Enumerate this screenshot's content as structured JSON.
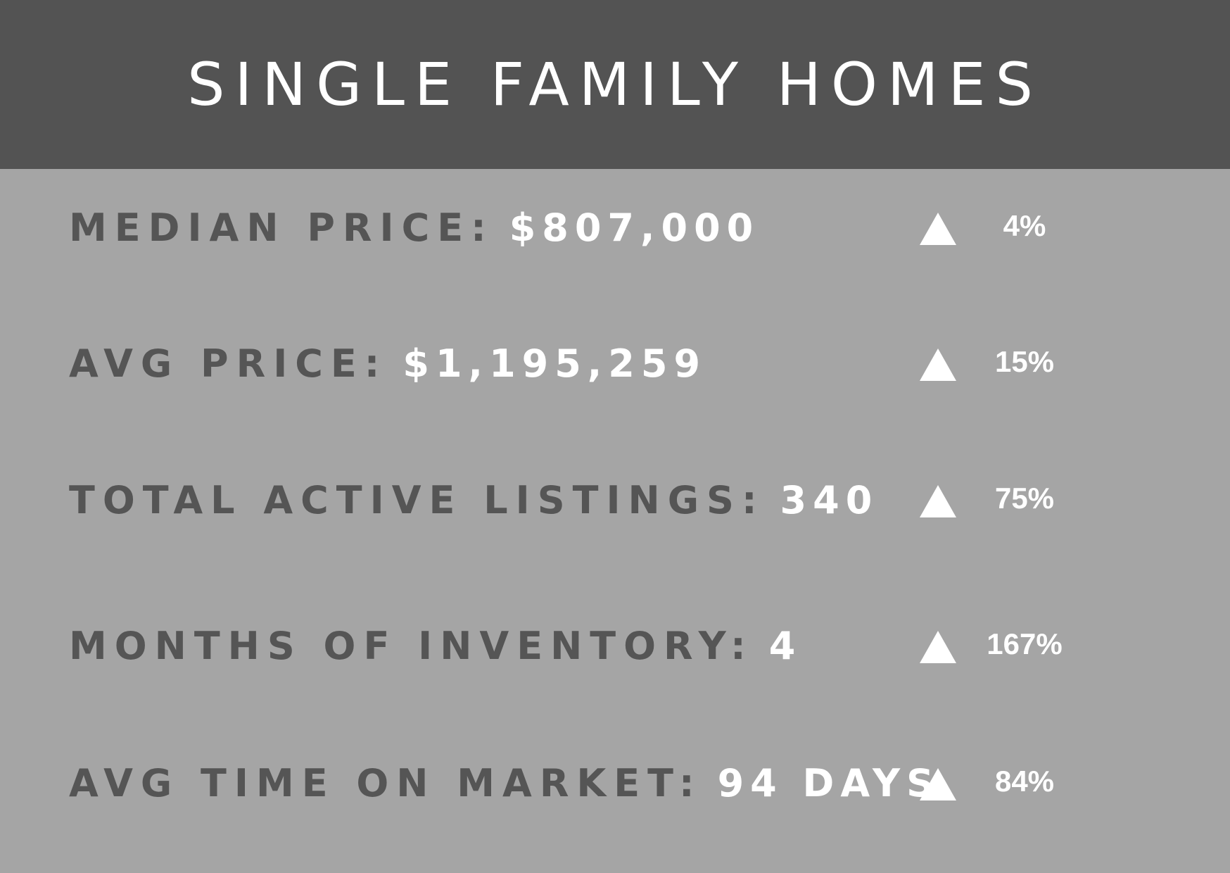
{
  "title": "SINGLE FAMILY HOMES",
  "colors": {
    "header_bg": "#535353",
    "body_bg": "#a5a5a5",
    "label": "#555555",
    "value": "#ffffff"
  },
  "stats": [
    {
      "label": "MEDIAN PRICE:",
      "value": "$807,000",
      "trend_icon": "triangle-up",
      "change": "4%"
    },
    {
      "label": "AVG PRICE:",
      "value": "$1,195,259",
      "trend_icon": "triangle-up",
      "change": "15%"
    },
    {
      "label": "TOTAL ACTIVE LISTINGS:",
      "value": "340",
      "trend_icon": "triangle-up",
      "change": "75%"
    },
    {
      "label": "MONTHS OF INVENTORY:",
      "value": "4",
      "trend_icon": "triangle-up",
      "change": "167%"
    },
    {
      "label": "AVG TIME ON MARKET:",
      "value": "94 DAYS",
      "trend_icon": "triangle-up",
      "change": "84%"
    }
  ]
}
